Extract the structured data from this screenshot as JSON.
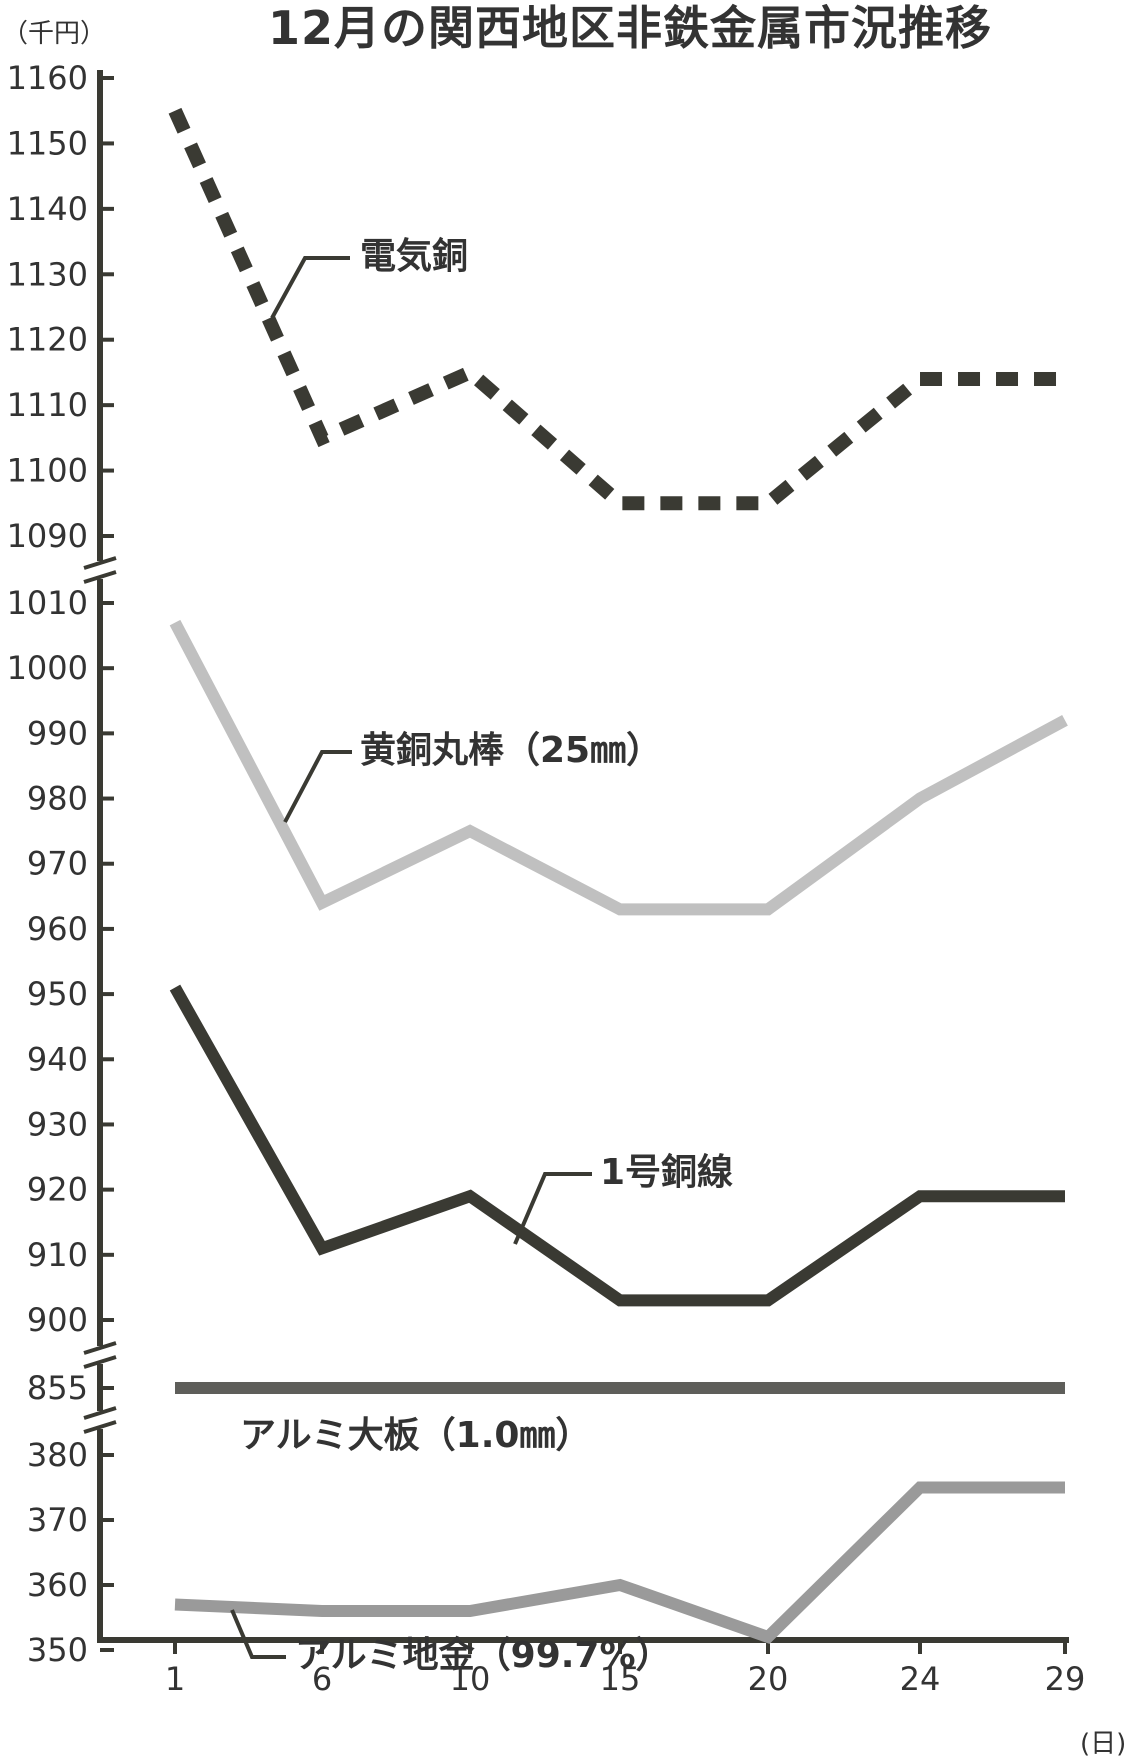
{
  "chart_data": {
    "type": "line",
    "title": "12月の関西地区非鉄金属市況推移",
    "y_unit": "（千円）",
    "x_unit": "(日)",
    "x": [
      1,
      6,
      10,
      15,
      20,
      24,
      29
    ],
    "x_tick_labels": [
      "1",
      "6",
      "10",
      "15",
      "20",
      "24",
      "29"
    ],
    "y_segments": [
      {
        "ticks": [
          1090,
          1100,
          1110,
          1120,
          1130,
          1140,
          1150,
          1160
        ]
      },
      {
        "ticks": [
          900,
          910,
          920,
          930,
          940,
          950,
          960,
          970,
          980,
          990,
          1000,
          1010
        ]
      },
      {
        "ticks": [
          855
        ]
      },
      {
        "ticks": [
          350,
          360,
          370,
          380
        ]
      }
    ],
    "series": [
      {
        "name": "電気銅",
        "values": [
          1155,
          1105,
          1115,
          1095,
          1095,
          1114,
          1114
        ],
        "color": "#3a3a33",
        "style": "dotted"
      },
      {
        "name": "黄銅丸棒（25㎜）",
        "values": [
          1007,
          964,
          975,
          963,
          963,
          980,
          992
        ],
        "color": "#c0c0c0",
        "style": "solid"
      },
      {
        "name": "1号銅線",
        "values": [
          951,
          911,
          919,
          903,
          903,
          919,
          919
        ],
        "color": "#3a3a33",
        "style": "solid"
      },
      {
        "name": "アルミ大板（1.0㎜）",
        "values": [
          855,
          855,
          855,
          855,
          855,
          855,
          855
        ],
        "color": "#5e5e5a",
        "style": "solid"
      },
      {
        "name": "アルミ地金（99.7%）",
        "values": [
          357,
          356,
          356,
          360,
          352,
          375,
          375
        ],
        "color": "#9a9a9a",
        "style": "solid"
      }
    ]
  }
}
